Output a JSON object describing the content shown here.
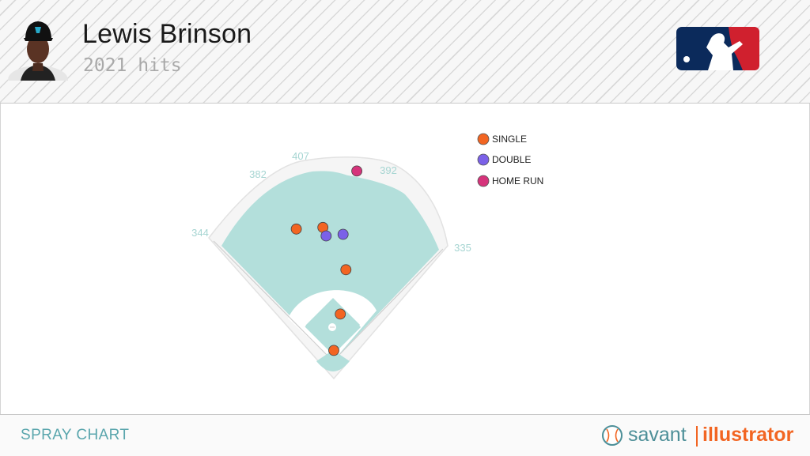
{
  "header": {
    "player_name": "Lewis Brinson",
    "subtitle": "2021 hits"
  },
  "footer": {
    "title": "SPRAY CHART",
    "brand_left": "savant",
    "brand_right": "illustrator"
  },
  "icons": {
    "avatar": "player-headshot-icon",
    "logo": "mlb-logo-icon",
    "brand": "baseball-icon"
  },
  "colors": {
    "field": "#b3dfdb",
    "single": "#f26522",
    "double": "#7b61e8",
    "home_run": "#d6337b",
    "distance_label": "#a6d5d2",
    "footer_title": "#5aa6ad",
    "brand_savant": "#4d8f98",
    "brand_illustrator": "#f26522",
    "mlb_blue": "#0b2a5b",
    "mlb_red": "#d0202e"
  },
  "chart_data": {
    "type": "scatter",
    "title": "",
    "distances": {
      "left_field": "344",
      "left_center": "382",
      "center": "407",
      "right_center": "392",
      "right_field": "335"
    },
    "legend": [
      "SINGLE",
      "DOUBLE",
      "HOME RUN"
    ],
    "legend_position": "top-right",
    "series": [
      {
        "name": "SINGLE",
        "points": [
          {
            "x": -93,
            "y": 316
          },
          {
            "x": -27,
            "y": 320
          },
          {
            "x": 30,
            "y": 215
          },
          {
            "x": 16,
            "y": 105
          },
          {
            "x": 0,
            "y": 15
          }
        ]
      },
      {
        "name": "DOUBLE",
        "points": [
          {
            "x": -19,
            "y": 299
          },
          {
            "x": 23,
            "y": 303
          }
        ]
      },
      {
        "name": "HOME RUN",
        "points": [
          {
            "x": 57,
            "y": 460
          }
        ]
      }
    ]
  }
}
